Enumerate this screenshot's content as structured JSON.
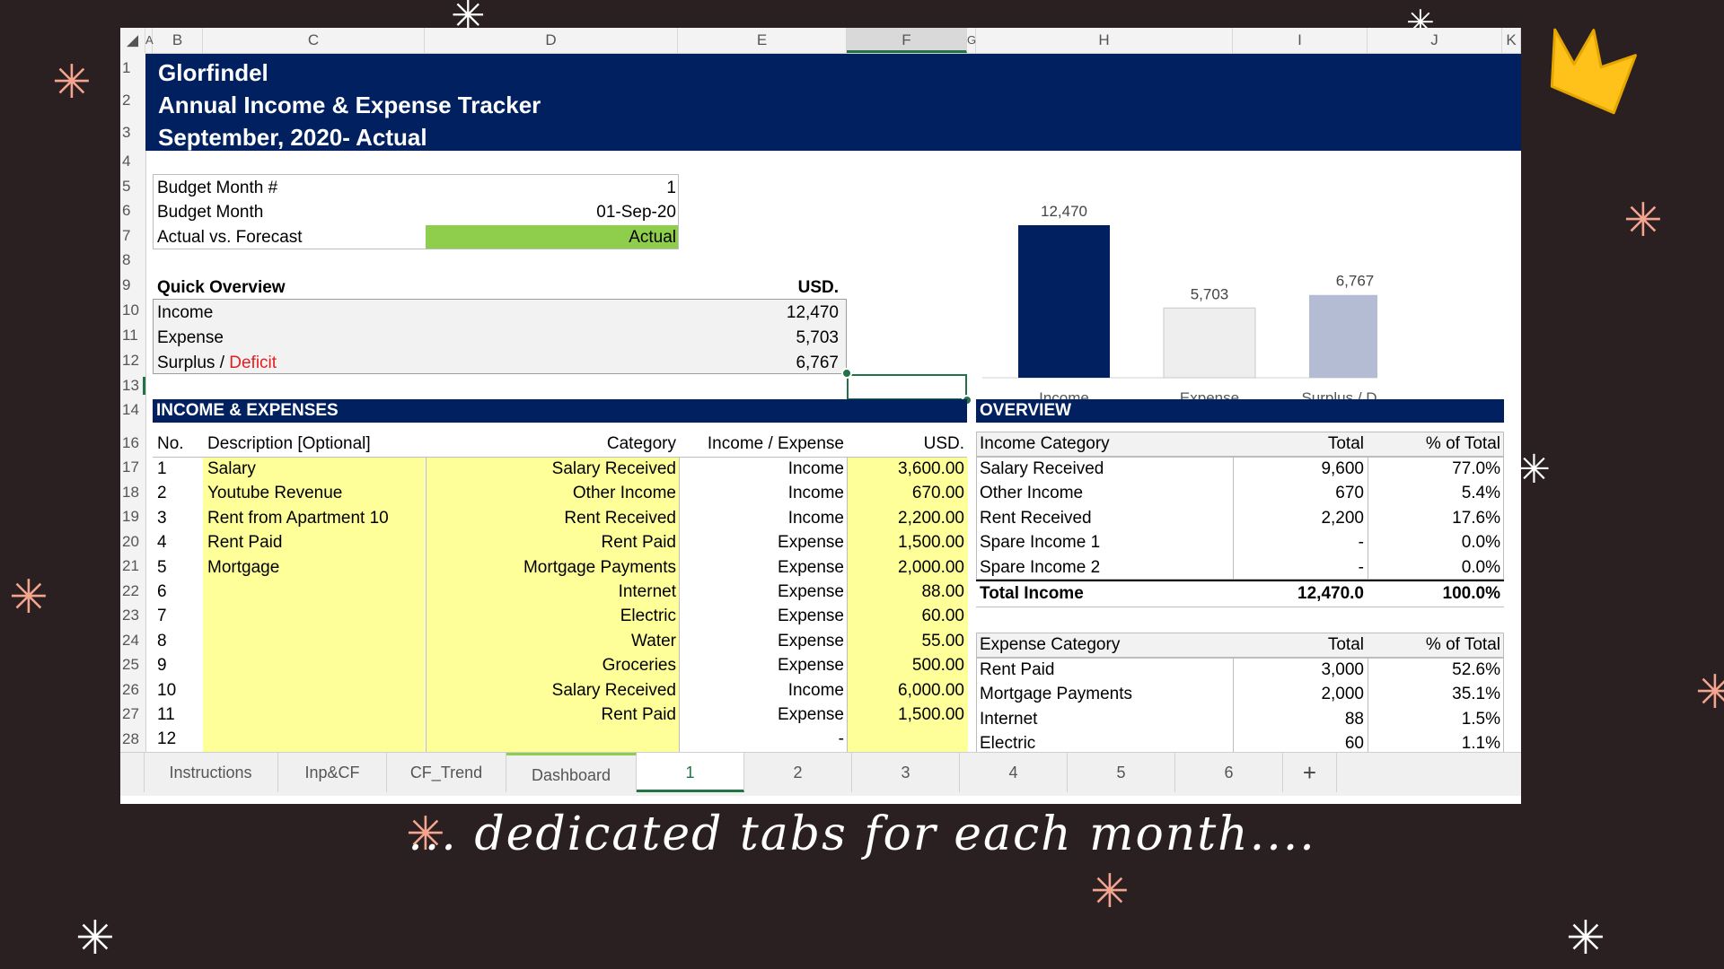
{
  "caption": "... dedicated tabs for each month....",
  "decorations": {
    "star_icon": "✳",
    "crown_icon": "crown-icon"
  },
  "colors": {
    "navy": "#002060",
    "yellow_fill": "#ffff99",
    "green_fill": "#8fce4d",
    "deficit_red": "#e02020",
    "bar_income": "#002060",
    "bar_expense": "#eeeeee",
    "bar_surplus": "#b4bcd3"
  },
  "columns": [
    "A",
    "B",
    "C",
    "D",
    "E",
    "F",
    "G",
    "H",
    "I",
    "J",
    "K"
  ],
  "rows": [
    "1",
    "2",
    "3",
    "4",
    "5",
    "6",
    "7",
    "8",
    "9",
    "10",
    "11",
    "12",
    "13",
    "14",
    "16",
    "17",
    "18",
    "19",
    "20",
    "21",
    "22",
    "23",
    "24",
    "25",
    "26",
    "27",
    "28"
  ],
  "header": {
    "line1": "Glorfindel",
    "line2": "Annual Income & Expense Tracker",
    "line3": "September, 2020- Actual"
  },
  "budget": {
    "month_num_label": "Budget Month #",
    "month_num_value": "1",
    "month_label": "Budget Month",
    "month_value": "01-Sep-20",
    "avf_label": "Actual vs. Forecast",
    "avf_value": "Actual"
  },
  "quick": {
    "title": "Quick Overview",
    "currency": "USD.",
    "income_label": "Income",
    "income_value": "12,470",
    "expense_label": "Expense",
    "expense_value": "5,703",
    "surplus_label": "Surplus / ",
    "deficit_label": "Deficit",
    "surplus_value": "6,767"
  },
  "chart_data": {
    "type": "bar",
    "categories": [
      "Income",
      "Expense",
      "Surplus / Deficit"
    ],
    "values": [
      12470,
      5703,
      6767
    ],
    "data_labels": [
      "12,470",
      "5,703",
      "6,767"
    ],
    "title": "",
    "xlabel": "",
    "ylabel": ""
  },
  "ie": {
    "title": "INCOME & EXPENSES",
    "headers": {
      "no": "No.",
      "desc": "Description [Optional]",
      "cat": "Category",
      "ie": "Income / Expense",
      "usd": "USD."
    },
    "rows": [
      {
        "no": "1",
        "desc": "Salary",
        "cat": "Salary Received",
        "ie": "Income",
        "usd": "3,600.00"
      },
      {
        "no": "2",
        "desc": "Youtube Revenue",
        "cat": "Other Income",
        "ie": "Income",
        "usd": "670.00"
      },
      {
        "no": "3",
        "desc": "Rent from Apartment 10",
        "cat": "Rent Received",
        "ie": "Income",
        "usd": "2,200.00"
      },
      {
        "no": "4",
        "desc": "Rent Paid",
        "cat": "Rent Paid",
        "ie": "Expense",
        "usd": "1,500.00"
      },
      {
        "no": "5",
        "desc": "Mortgage",
        "cat": "Mortgage Payments",
        "ie": "Expense",
        "usd": "2,000.00"
      },
      {
        "no": "6",
        "desc": "",
        "cat": "Internet",
        "ie": "Expense",
        "usd": "88.00"
      },
      {
        "no": "7",
        "desc": "",
        "cat": "Electric",
        "ie": "Expense",
        "usd": "60.00"
      },
      {
        "no": "8",
        "desc": "",
        "cat": "Water",
        "ie": "Expense",
        "usd": "55.00"
      },
      {
        "no": "9",
        "desc": "",
        "cat": "Groceries",
        "ie": "Expense",
        "usd": "500.00"
      },
      {
        "no": "10",
        "desc": "",
        "cat": "Salary Received",
        "ie": "Income",
        "usd": "6,000.00"
      },
      {
        "no": "11",
        "desc": "",
        "cat": "Rent Paid",
        "ie": "Expense",
        "usd": "1,500.00"
      },
      {
        "no": "12",
        "desc": "",
        "cat": "",
        "ie": "-",
        "usd": ""
      }
    ]
  },
  "overview": {
    "title": "OVERVIEW",
    "income_headers": {
      "cat": "Income Category",
      "total": "Total",
      "pct": "% of Total"
    },
    "income_rows": [
      {
        "cat": "Salary Received",
        "total": "9,600",
        "pct": "77.0%"
      },
      {
        "cat": "Other Income",
        "total": "670",
        "pct": "5.4%"
      },
      {
        "cat": "Rent Received",
        "total": "2,200",
        "pct": "17.6%"
      },
      {
        "cat": "Spare Income 1",
        "total": "-",
        "pct": "0.0%"
      },
      {
        "cat": "Spare Income 2",
        "total": "-",
        "pct": "0.0%"
      }
    ],
    "income_total": {
      "cat": "Total Income",
      "total": "12,470.0",
      "pct": "100.0%"
    },
    "expense_headers": {
      "cat": "Expense Category",
      "total": "Total",
      "pct": "% of Total"
    },
    "expense_rows": [
      {
        "cat": "Rent Paid",
        "total": "3,000",
        "pct": "52.6%"
      },
      {
        "cat": "Mortgage Payments",
        "total": "2,000",
        "pct": "35.1%"
      },
      {
        "cat": "Internet",
        "total": "88",
        "pct": "1.5%"
      },
      {
        "cat": "Electric",
        "total": "60",
        "pct": "1.1%"
      }
    ]
  },
  "tabs": [
    "Instructions",
    "Inp&CF",
    "CF_Trend",
    "Dashboard",
    "1",
    "2",
    "3",
    "4",
    "5",
    "6",
    "+"
  ],
  "active_tab": "1"
}
